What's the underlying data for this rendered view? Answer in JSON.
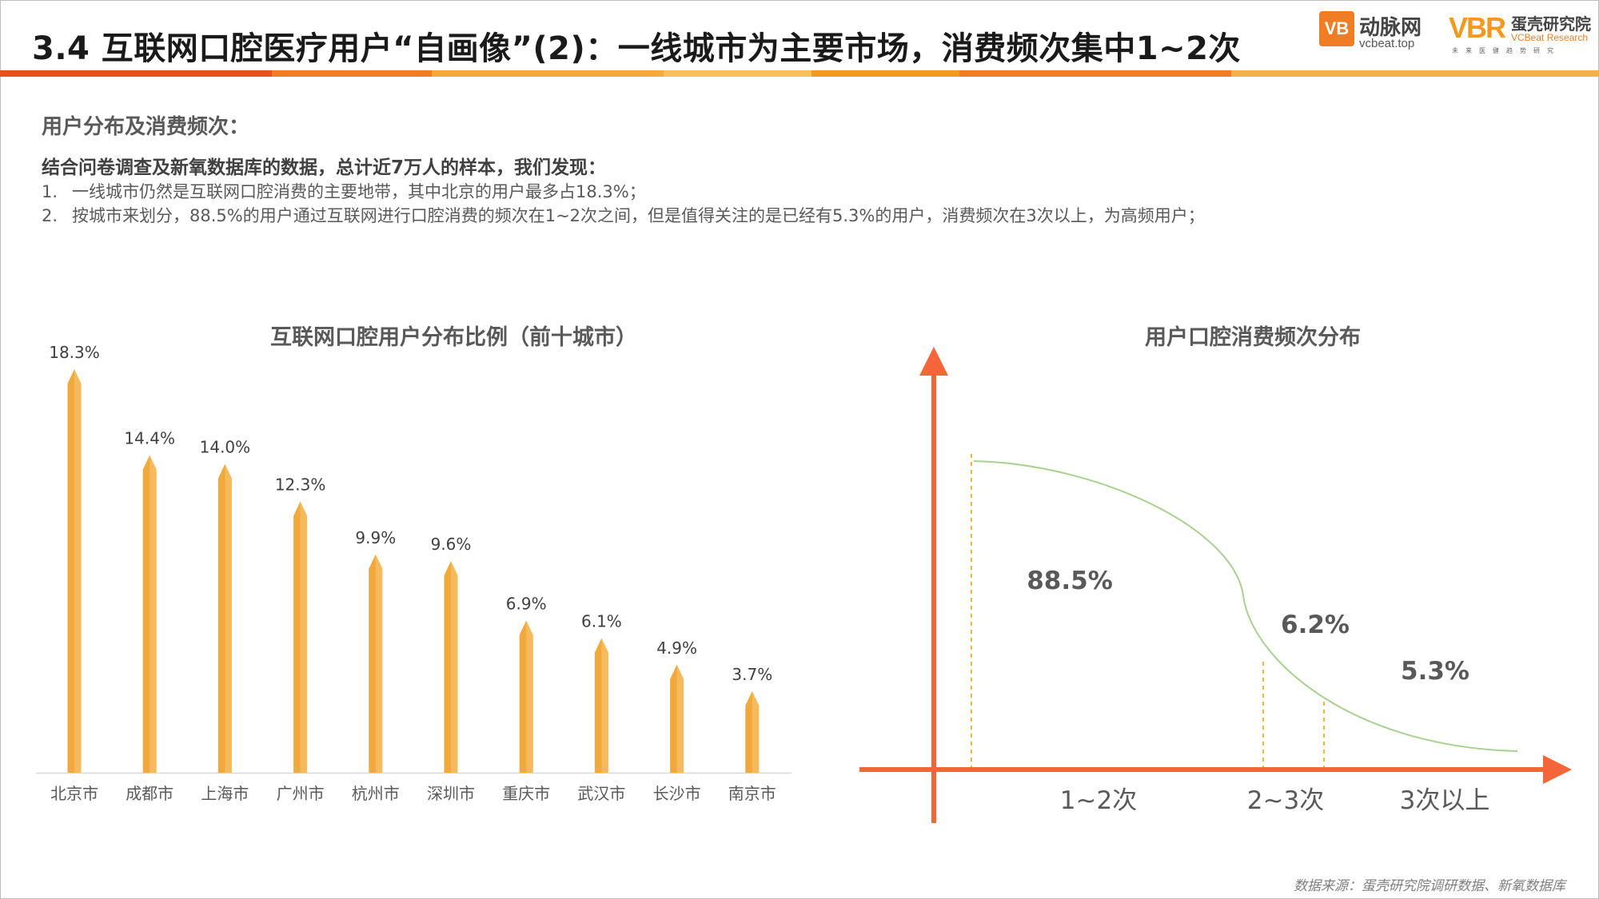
{
  "header": {
    "title": "3.4 互联网口腔医疗用户“自画像”(2)：一线城市为主要市场，消费频次集中1~2次",
    "logo_vcbeat_mark": "VB",
    "logo_vcbeat_name": "动脉网",
    "logo_vcbeat_url": "vcbeat.top",
    "logo_vbr_mark": "VBR",
    "logo_vbr_name": "蛋壳研究院",
    "logo_vbr_en": "VCBeat Research",
    "logo_vbr_sub": "未来医健趋势研究"
  },
  "colors": {
    "accent": "#f07d24",
    "bar": "#f2a93b",
    "bar_light": "#f7c976",
    "axis_arrow": "#f4663a",
    "curve": "#a9d18e",
    "guide": "#f2b63a"
  },
  "content": {
    "section_head": "用户分布及消费频次：",
    "intro": "结合问卷调查及新氧数据库的数据，总计近7万人的样本，我们发现：",
    "points": [
      {
        "num": "1.",
        "text": "一线城市仍然是互联网口腔消费的主要地带，其中北京的用户最多占18.3%；"
      },
      {
        "num": "2.",
        "text": "按城市来划分，88.5%的用户通过互联网进行口腔消费的频次在1~2次之间，但是值得关注的是已经有5.3%的用户，消费频次在3次以上，为高频用户；"
      }
    ]
  },
  "chart_data": [
    {
      "type": "bar",
      "title": "互联网口腔用户分布比例（前十城市）",
      "categories": [
        "北京市",
        "成都市",
        "上海市",
        "广州市",
        "杭州市",
        "深圳市",
        "重庆市",
        "武汉市",
        "长沙市",
        "南京市"
      ],
      "values": [
        18.3,
        14.4,
        14.0,
        12.3,
        9.9,
        9.6,
        6.9,
        6.1,
        4.9,
        3.7
      ],
      "data_labels": [
        "18.3%",
        "14.4%",
        "14.0%",
        "12.3%",
        "9.9%",
        "9.6%",
        "6.9%",
        "6.1%",
        "4.9%",
        "3.7%"
      ],
      "unit": "%",
      "ylim": [
        0,
        18.3
      ],
      "grid": false,
      "legend": "none"
    },
    {
      "type": "area",
      "title": "用户口腔消费频次分布",
      "categories": [
        "1~2次",
        "2~3次",
        "3次以上"
      ],
      "values": [
        88.5,
        6.2,
        5.3
      ],
      "data_labels": [
        "88.5%",
        "6.2%",
        "5.3%"
      ],
      "unit": "%",
      "grid": false,
      "legend": "none"
    }
  ],
  "footer": {
    "source": "数据来源：蛋壳研究院调研数据、新氧数据库"
  }
}
